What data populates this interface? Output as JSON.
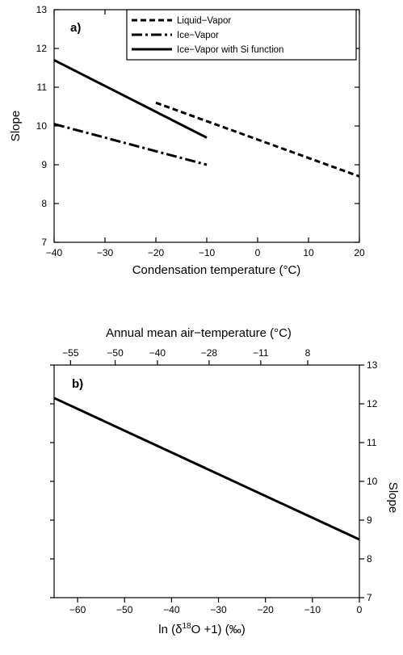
{
  "chart_data": [
    {
      "type": "line",
      "panel_label": "a)",
      "xlabel": "Condensation temperature (°C)",
      "ylabel": "Slope",
      "xlim": [
        -40,
        20
      ],
      "ylim": [
        7,
        13
      ],
      "x_ticks": [
        -40,
        -30,
        -20,
        -10,
        0,
        10,
        20
      ],
      "y_ticks": [
        7,
        8,
        9,
        10,
        11,
        12,
        13
      ],
      "legend_position": "top-right",
      "series": [
        {
          "name": "Liquid−Vapor",
          "style": "dashed",
          "x": [
            -20,
            20
          ],
          "y": [
            10.6,
            8.7
          ]
        },
        {
          "name": "Ice−Vapor",
          "style": "dash-dot",
          "x": [
            -40,
            -10
          ],
          "y": [
            10.05,
            9.0
          ]
        },
        {
          "name": "Ice−Vapor with Si function",
          "style": "solid",
          "x": [
            -40,
            -10
          ],
          "y": [
            11.7,
            9.7
          ]
        }
      ]
    },
    {
      "type": "line",
      "panel_label": "b)",
      "xlabel_pre": "ln (δ",
      "xlabel_sup": "18",
      "xlabel_post": "O +1) (‰)",
      "ylabel": "Slope",
      "top_xlabel": "Annual mean air−temperature (°C)",
      "xlim": [
        -65,
        0
      ],
      "ylim": [
        7,
        13
      ],
      "x_ticks": [
        -60,
        -50,
        -40,
        -30,
        -20,
        -10,
        0
      ],
      "y_ticks": [
        7,
        8,
        9,
        10,
        11,
        12,
        13
      ],
      "top_ticks": [
        {
          "label": "−55",
          "x": -61.5
        },
        {
          "label": "−50",
          "x": -52
        },
        {
          "label": "−40",
          "x": -43
        },
        {
          "label": "−28",
          "x": -32
        },
        {
          "label": "−11",
          "x": -21
        },
        {
          "label": "8",
          "x": -11
        }
      ],
      "series": [
        {
          "name": "",
          "style": "solid",
          "x": [
            -65,
            0
          ],
          "y": [
            12.15,
            8.5
          ]
        }
      ]
    }
  ]
}
